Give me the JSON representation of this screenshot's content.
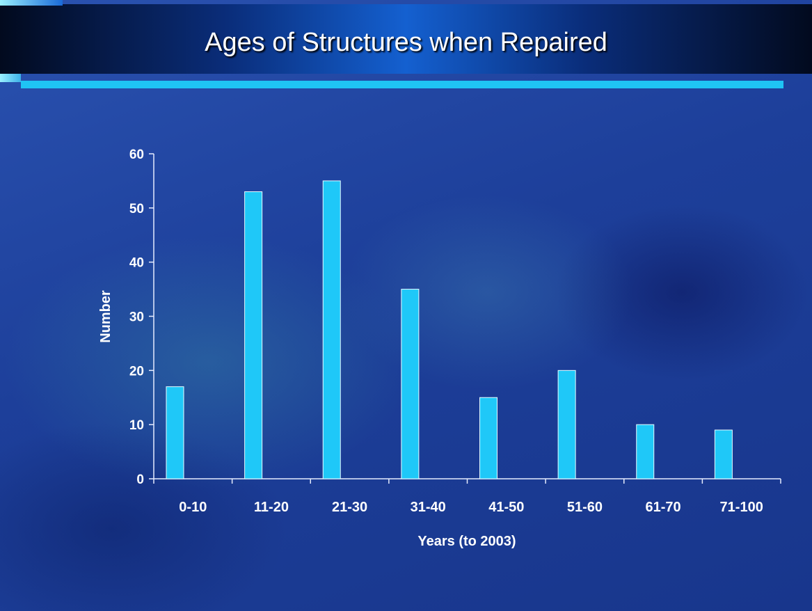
{
  "slide": {
    "title": "Ages of Structures when Repaired"
  },
  "colors": {
    "bar": "#1fc8f8",
    "bar_stroke": "#e8fbff",
    "axis": "#e6ecff"
  },
  "chart_data": {
    "type": "bar",
    "title": "",
    "xlabel": "Years (to 2003)",
    "ylabel": "Number",
    "categories": [
      "0-10",
      "11-20",
      "21-30",
      "31-40",
      "41-50",
      "51-60",
      "61-70",
      "71-100"
    ],
    "values": [
      17,
      53,
      55,
      35,
      15,
      20,
      10,
      9
    ],
    "ylim": [
      0,
      60
    ],
    "yticks": [
      0,
      10,
      20,
      30,
      40,
      50,
      60
    ],
    "grid": false,
    "legend": "none"
  }
}
